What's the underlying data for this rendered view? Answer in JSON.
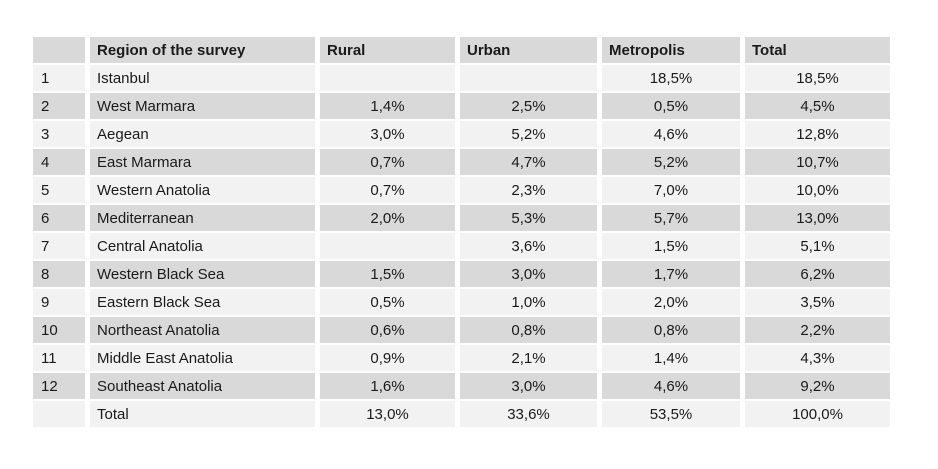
{
  "chart_data": {
    "type": "table",
    "columns": [
      "",
      "Region of the survey",
      "Rural",
      "Urban",
      "Metropolis",
      "Total"
    ],
    "rows": [
      [
        "1",
        "Istanbul",
        "",
        "",
        "18,5%",
        "18,5%"
      ],
      [
        "2",
        "West Marmara",
        "1,4%",
        "2,5%",
        "0,5%",
        "4,5%"
      ],
      [
        "3",
        "Aegean",
        "3,0%",
        "5,2%",
        "4,6%",
        "12,8%"
      ],
      [
        "4",
        "East Marmara",
        "0,7%",
        "4,7%",
        "5,2%",
        "10,7%"
      ],
      [
        "5",
        "Western Anatolia",
        "0,7%",
        "2,3%",
        "7,0%",
        "10,0%"
      ],
      [
        "6",
        "Mediterranean",
        "2,0%",
        "5,3%",
        "5,7%",
        "13,0%"
      ],
      [
        "7",
        "Central Anatolia",
        "",
        "3,6%",
        "1,5%",
        "5,1%"
      ],
      [
        "8",
        "Western Black Sea",
        "1,5%",
        "3,0%",
        "1,7%",
        "6,2%"
      ],
      [
        "9",
        "Eastern Black Sea",
        "0,5%",
        "1,0%",
        "2,0%",
        "3,5%"
      ],
      [
        "10",
        "Northeast Anatolia",
        "0,6%",
        "0,8%",
        "0,8%",
        "2,2%"
      ],
      [
        "11",
        "Middle East Anatolia",
        "0,9%",
        "2,1%",
        "1,4%",
        "4,3%"
      ],
      [
        "12",
        "Southeast Anatolia",
        "1,6%",
        "3,0%",
        "4,6%",
        "9,2%"
      ],
      [
        "",
        "Total",
        "13,0%",
        "33,6%",
        "53,5%",
        "100,0%"
      ]
    ],
    "value_format": "percent, decimal comma",
    "layout": {
      "header_row": true,
      "row_striping": "alternating light/dark starting light",
      "grid": "white gutters between cells"
    }
  },
  "colors": {
    "header_bg": "#d9d9d9",
    "row_dark_bg": "#d9d9d9",
    "row_light_bg": "#f2f2f2",
    "gutter": "#ffffff",
    "text": "#1a1a1a",
    "page_bg": "#ffffff"
  }
}
